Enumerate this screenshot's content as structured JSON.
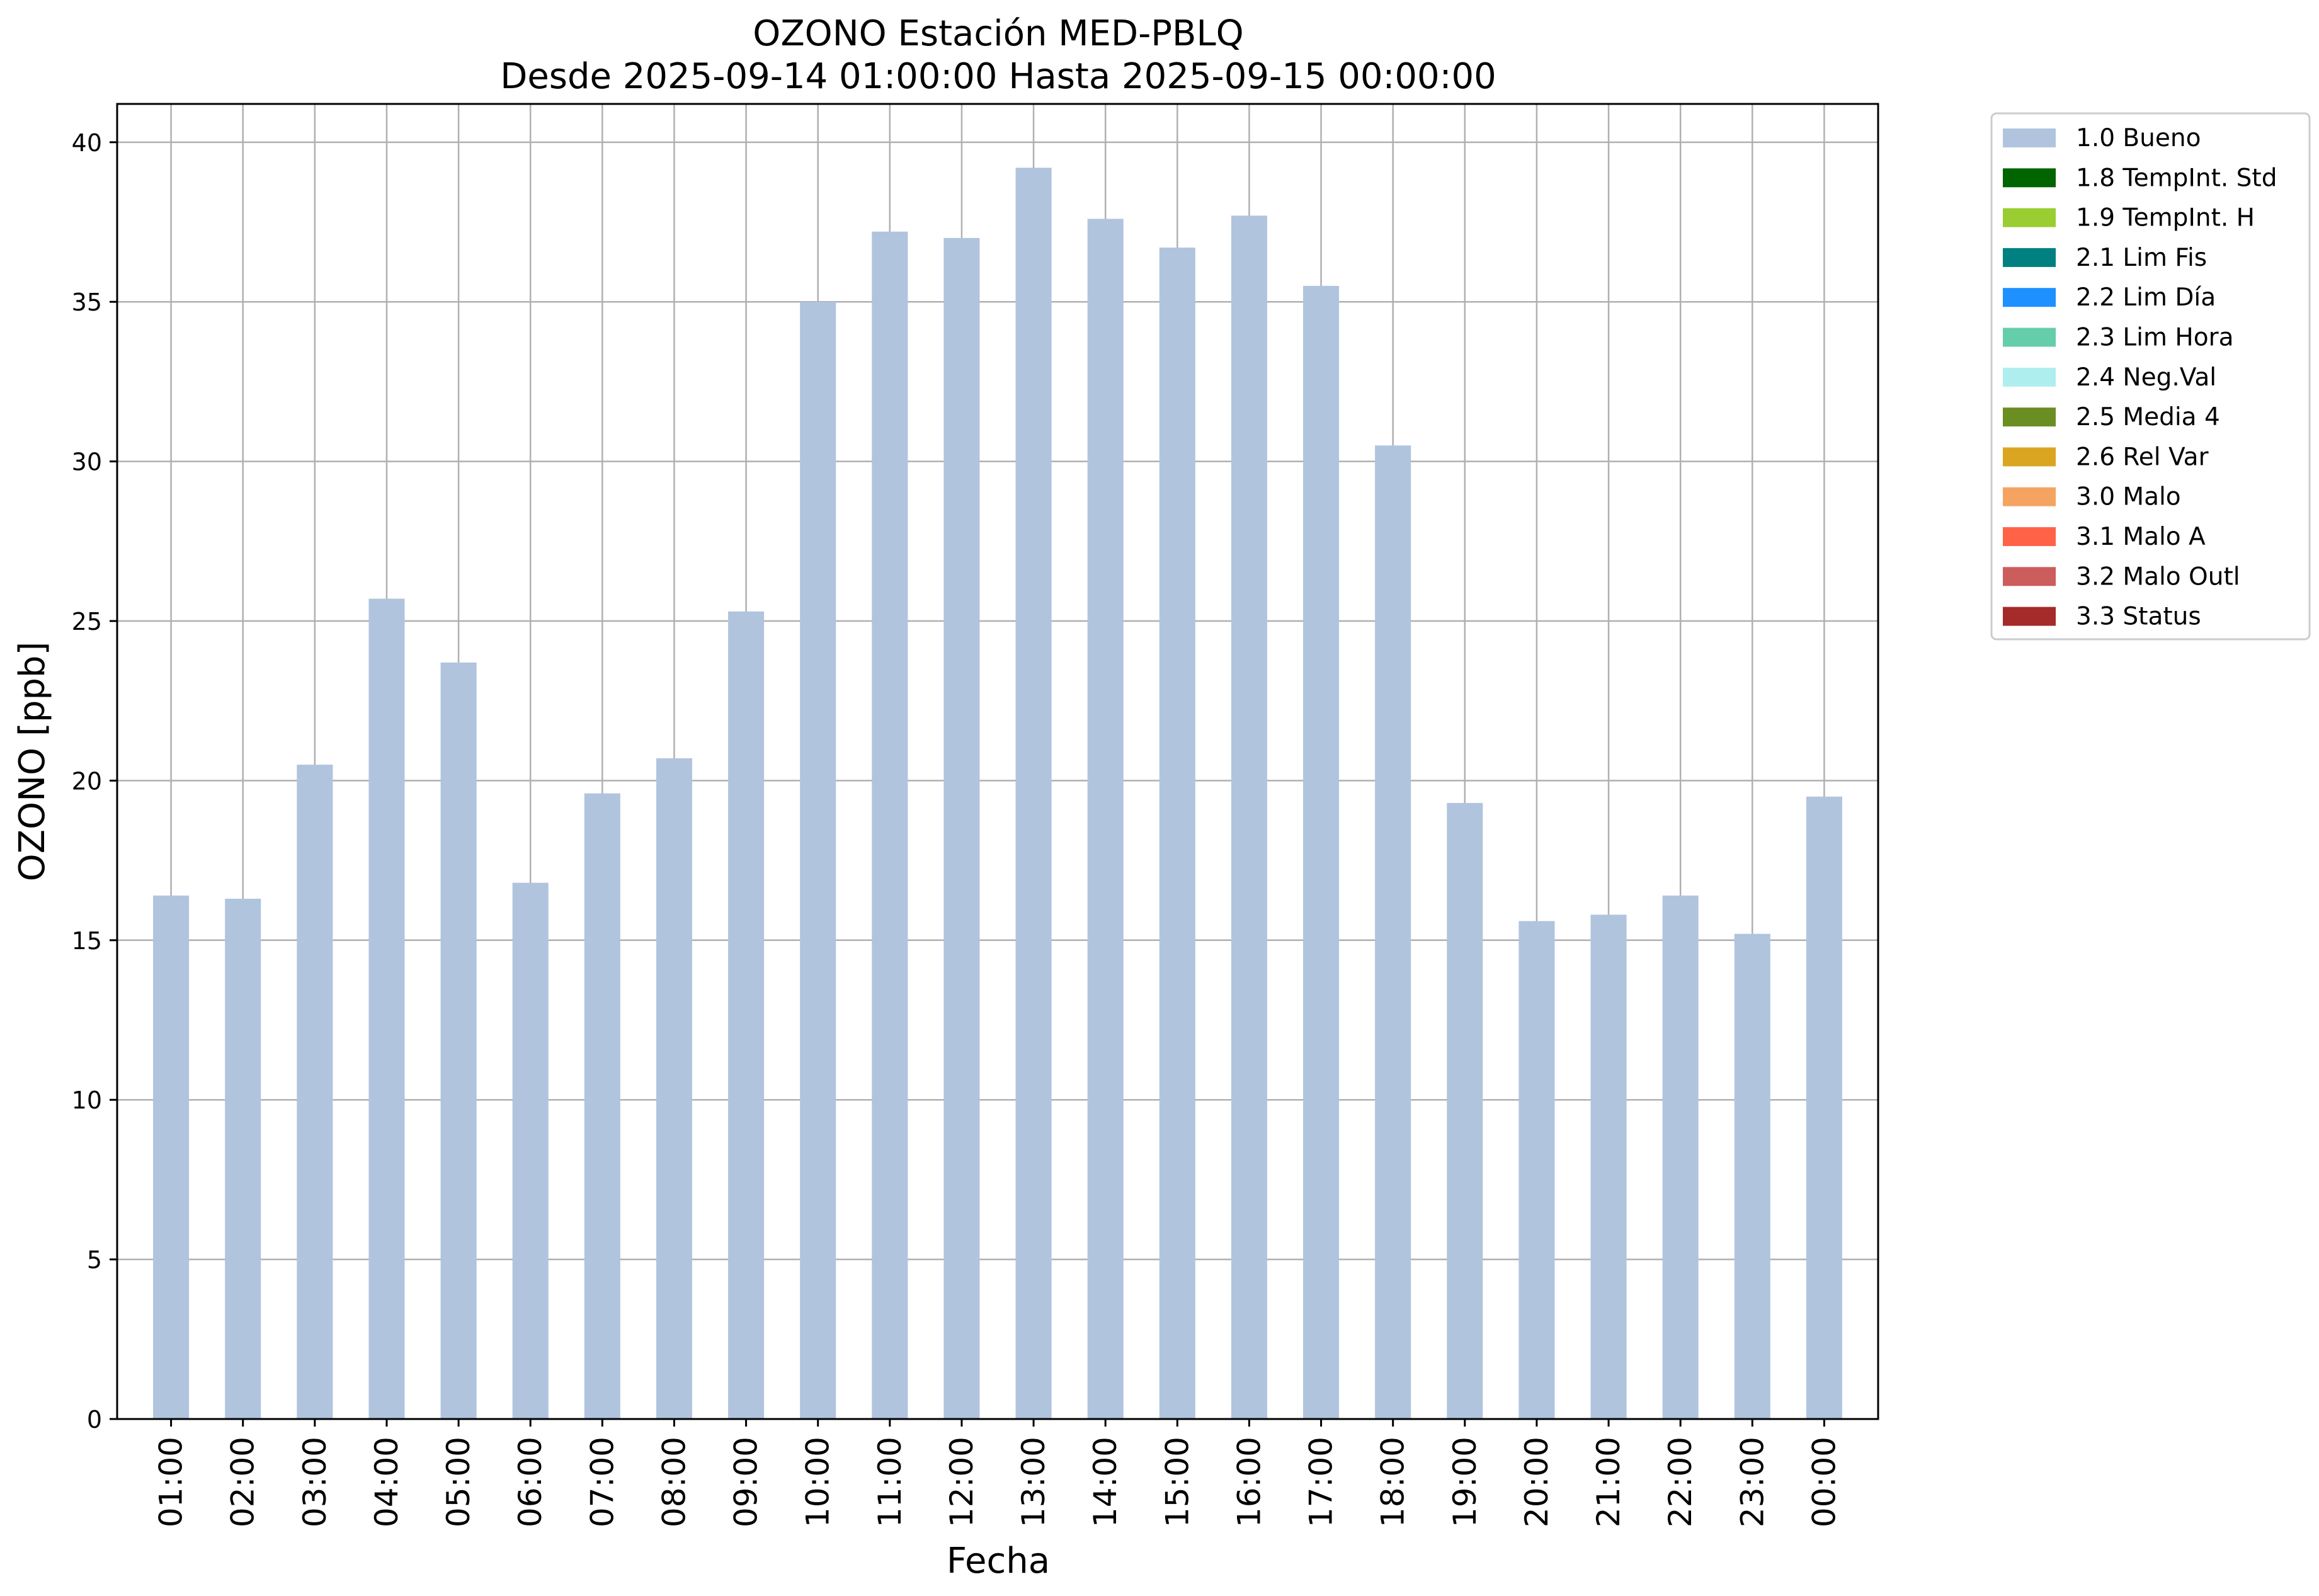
{
  "chart_data": {
    "type": "bar",
    "title": "OZONO Estación MED-PBLQ",
    "subtitle": "Desde 2025-09-14 01:00:00 Hasta 2025-09-15 00:00:00",
    "xlabel": "Fecha",
    "ylabel": "OZONO [ppb]",
    "ylim": [
      0,
      41.2
    ],
    "yticks": [
      0,
      5,
      10,
      15,
      20,
      25,
      30,
      35,
      40
    ],
    "grid": true,
    "legend_position": "outside-top-right",
    "categories": [
      "01:00",
      "02:00",
      "03:00",
      "04:00",
      "05:00",
      "06:00",
      "07:00",
      "08:00",
      "09:00",
      "10:00",
      "11:00",
      "12:00",
      "13:00",
      "14:00",
      "15:00",
      "16:00",
      "17:00",
      "18:00",
      "19:00",
      "20:00",
      "21:00",
      "22:00",
      "23:00",
      "00:00"
    ],
    "series": [
      {
        "name": "1.0 Bueno",
        "color": "#b0c4de",
        "values": [
          16.4,
          16.3,
          20.5,
          25.7,
          23.7,
          16.8,
          19.6,
          20.7,
          25.3,
          35.0,
          37.2,
          37.0,
          39.2,
          37.6,
          36.7,
          37.7,
          35.5,
          30.5,
          19.3,
          15.6,
          15.8,
          16.4,
          15.2,
          19.5
        ]
      }
    ],
    "legend": [
      {
        "label": "1.0 Bueno",
        "color": "#b0c4de"
      },
      {
        "label": "1.8 TempInt. Std",
        "color": "#006400"
      },
      {
        "label": "1.9 TempInt. H",
        "color": "#9acd32"
      },
      {
        "label": "2.1 Lim Fis",
        "color": "#008080"
      },
      {
        "label": "2.2 Lim Día",
        "color": "#1e90ff"
      },
      {
        "label": "2.3 Lim Hora",
        "color": "#66cdaa"
      },
      {
        "label": "2.4 Neg.Val",
        "color": "#afeeee"
      },
      {
        "label": "2.5 Media 4",
        "color": "#6b8e23"
      },
      {
        "label": "2.6 Rel Var",
        "color": "#daa520"
      },
      {
        "label": "3.0 Malo",
        "color": "#f4a460"
      },
      {
        "label": "3.1 Malo A",
        "color": "#ff6347"
      },
      {
        "label": "3.2 Malo Outl",
        "color": "#cd5c5c"
      },
      {
        "label": "3.3 Status",
        "color": "#a52a2a"
      }
    ]
  }
}
